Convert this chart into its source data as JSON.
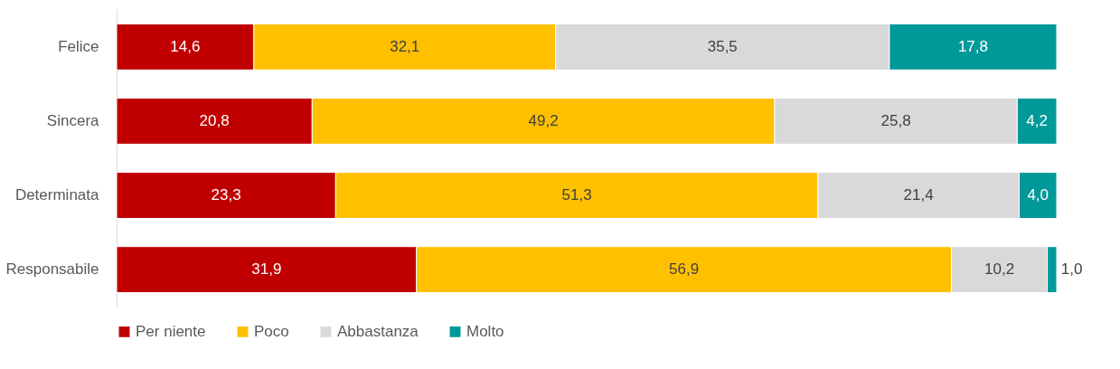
{
  "chart_data": {
    "type": "bar",
    "orientation": "horizontal",
    "stacked": true,
    "categories": [
      "Felice",
      "Sincera",
      "Determinata",
      "Responsabile"
    ],
    "xlim": [
      0,
      100
    ],
    "tick_labels": "y",
    "legend": "bottom",
    "series": [
      {
        "name": "Per niente",
        "color": "#c00000",
        "values": [
          14.6,
          20.8,
          23.3,
          31.9
        ],
        "value_labels": [
          "14,6",
          "20,8",
          "23,3",
          "31,9"
        ]
      },
      {
        "name": "Poco",
        "color": "#ffc000",
        "values": [
          32.1,
          49.2,
          51.3,
          56.9
        ],
        "value_labels": [
          "32,1",
          "49,2",
          "51,3",
          "56,9"
        ]
      },
      {
        "name": "Abbastanza",
        "color": "#d9d9d9",
        "values": [
          35.5,
          25.8,
          21.4,
          10.2
        ],
        "value_labels": [
          "35,5",
          "25,8",
          "21,4",
          "10,2"
        ]
      },
      {
        "name": "Molto",
        "color": "#009999",
        "values": [
          17.8,
          4.2,
          4.0,
          1.0
        ],
        "value_labels": [
          "17,8",
          "4,2",
          "4,0",
          "1,0"
        ]
      }
    ]
  }
}
